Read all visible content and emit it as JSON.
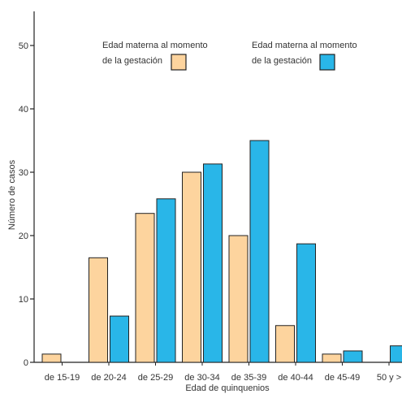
{
  "chart_data": {
    "type": "bar",
    "categories": [
      "de 15-19",
      "de 20-24",
      "de 25-29",
      "de 30-34",
      "de 35-39",
      "de 40-44",
      "de 45-49",
      "50 y >"
    ],
    "series": [
      {
        "name": "Edad materna al momento de la gestación",
        "color": "#fdd49e",
        "values": [
          1.3,
          16.5,
          23.5,
          30,
          20,
          5.8,
          1.3,
          0
        ]
      },
      {
        "name": "Edad materna al momento de la gestación",
        "color": "#29b6e8",
        "values": [
          0,
          7.3,
          25.8,
          31.3,
          35,
          18.7,
          1.8,
          2.6
        ]
      }
    ],
    "xlabel": "Edad de quinquenios",
    "ylabel": "Número de casos",
    "ylim": [
      0,
      50
    ],
    "yticks": [
      0,
      10,
      20,
      30,
      40,
      50
    ],
    "legend": {
      "position": "top",
      "items": [
        {
          "line1": "Edad materna al momento",
          "line2": "de la gestación",
          "color": "#fdd49e"
        },
        {
          "line1": "Edad materna al momento",
          "line2": "de la gestación",
          "color": "#29b6e8"
        }
      ]
    },
    "grid": false
  }
}
